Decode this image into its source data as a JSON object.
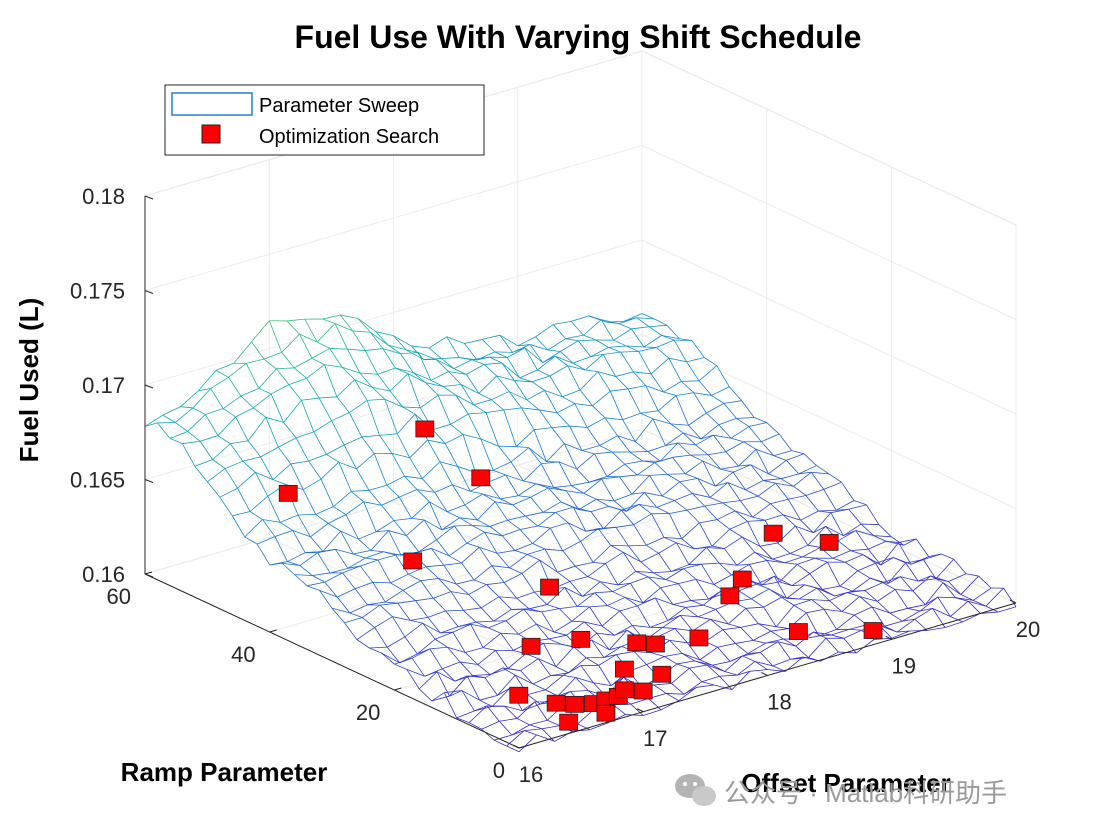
{
  "chart_data": {
    "type": "surface",
    "title": "Fuel Use With Varying Shift Schedule",
    "xlabel": "Offset Parameter",
    "ylabel": "Ramp Parameter",
    "zlabel": "Fuel Used (L)",
    "x_ticks": [
      "16",
      "17",
      "18",
      "19",
      "20"
    ],
    "y_ticks": [
      "0",
      "20",
      "40",
      "60"
    ],
    "z_ticks": [
      "0.16",
      "0.165",
      "0.17",
      "0.175",
      "0.18"
    ],
    "xlim": [
      16,
      20
    ],
    "ylim": [
      0,
      60
    ],
    "zlim": [
      0.16,
      0.18
    ],
    "grid": true,
    "legend_position": "top-left",
    "series": [
      {
        "name": "Parameter Sweep",
        "kind": "mesh surface",
        "colormap": "parula"
      },
      {
        "name": "Optimization Search",
        "kind": "markers",
        "marker": "square",
        "color": "#ff0000",
        "points": [
          {
            "x": 16.4,
            "y": 45,
            "z": 0.1658
          },
          {
            "x": 17.6,
            "y": 47,
            "z": 0.1666
          },
          {
            "x": 18.0,
            "y": 46,
            "z": 0.1634
          },
          {
            "x": 16.9,
            "y": 35,
            "z": 0.1628
          },
          {
            "x": 17.5,
            "y": 25,
            "z": 0.1618
          },
          {
            "x": 16.9,
            "y": 16,
            "z": 0.1612
          },
          {
            "x": 17.3,
            "y": 16,
            "z": 0.1608
          },
          {
            "x": 17.6,
            "y": 13,
            "z": 0.1605
          },
          {
            "x": 17.7,
            "y": 12,
            "z": 0.1604
          },
          {
            "x": 18.0,
            "y": 11,
            "z": 0.1603
          },
          {
            "x": 18.5,
            "y": 16,
            "z": 0.1608
          },
          {
            "x": 18.7,
            "y": 18,
            "z": 0.161
          },
          {
            "x": 19.3,
            "y": 25,
            "z": 0.1612
          },
          {
            "x": 19.6,
            "y": 22,
            "z": 0.1606
          },
          {
            "x": 18.6,
            "y": 7,
            "z": 0.1601
          },
          {
            "x": 16.5,
            "y": 10,
            "z": 0.1603
          },
          {
            "x": 16.6,
            "y": 6,
            "z": 0.1603
          },
          {
            "x": 16.7,
            "y": 5,
            "z": 0.1602
          },
          {
            "x": 16.8,
            "y": 4,
            "z": 0.1602
          },
          {
            "x": 16.9,
            "y": 4,
            "z": 0.1602
          },
          {
            "x": 17.0,
            "y": 4,
            "z": 0.1602
          },
          {
            "x": 17.1,
            "y": 5,
            "z": 0.1602
          },
          {
            "x": 17.2,
            "y": 4,
            "z": 0.1601
          },
          {
            "x": 17.3,
            "y": 9,
            "z": 0.1603
          },
          {
            "x": 17.45,
            "y": 6,
            "z": 0.1602
          },
          {
            "x": 16.5,
            "y": 2,
            "z": 0.1601
          },
          {
            "x": 16.8,
            "y": 2,
            "z": 0.16
          },
          {
            "x": 19.0,
            "y": 3,
            "z": 0.16
          }
        ]
      }
    ]
  },
  "legend": {
    "sweep_label": "Parameter Sweep",
    "search_label": "Optimization Search"
  },
  "watermark": {
    "text": "公众号 · Matlab科研助手"
  }
}
